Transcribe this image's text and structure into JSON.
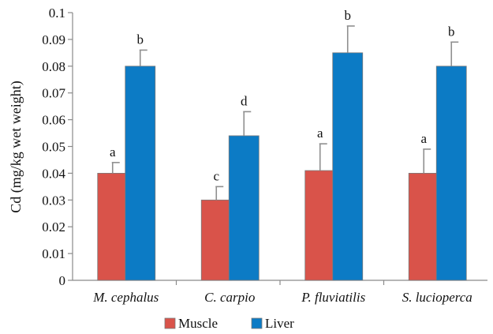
{
  "chart_data": {
    "type": "bar",
    "title": "",
    "xlabel": "",
    "ylabel": "Cd (mg/kg wet weight)",
    "ylim": [
      0,
      0.1
    ],
    "y_ticks": [
      "0",
      "0.01",
      "0.02",
      "0.03",
      "0.04",
      "0.05",
      "0.06",
      "0.07",
      "0.08",
      "0.09",
      "0.1"
    ],
    "categories": [
      "M. cephalus",
      "C. carpio",
      "P. fluviatilis",
      "S. lucioperca"
    ],
    "series": [
      {
        "name": "Muscle",
        "color": "#d9534a",
        "values": [
          0.04,
          0.03,
          0.041,
          0.04
        ],
        "errors": [
          0.004,
          0.005,
          0.01,
          0.009
        ],
        "labels": [
          "a",
          "c",
          "a",
          "a"
        ]
      },
      {
        "name": "Liver",
        "color": "#0c7bc5",
        "values": [
          0.08,
          0.054,
          0.085,
          0.08
        ],
        "errors": [
          0.006,
          0.009,
          0.01,
          0.009
        ],
        "labels": [
          "b",
          "d",
          "b",
          "b"
        ]
      }
    ],
    "grid": false,
    "legend_position": "bottom"
  }
}
